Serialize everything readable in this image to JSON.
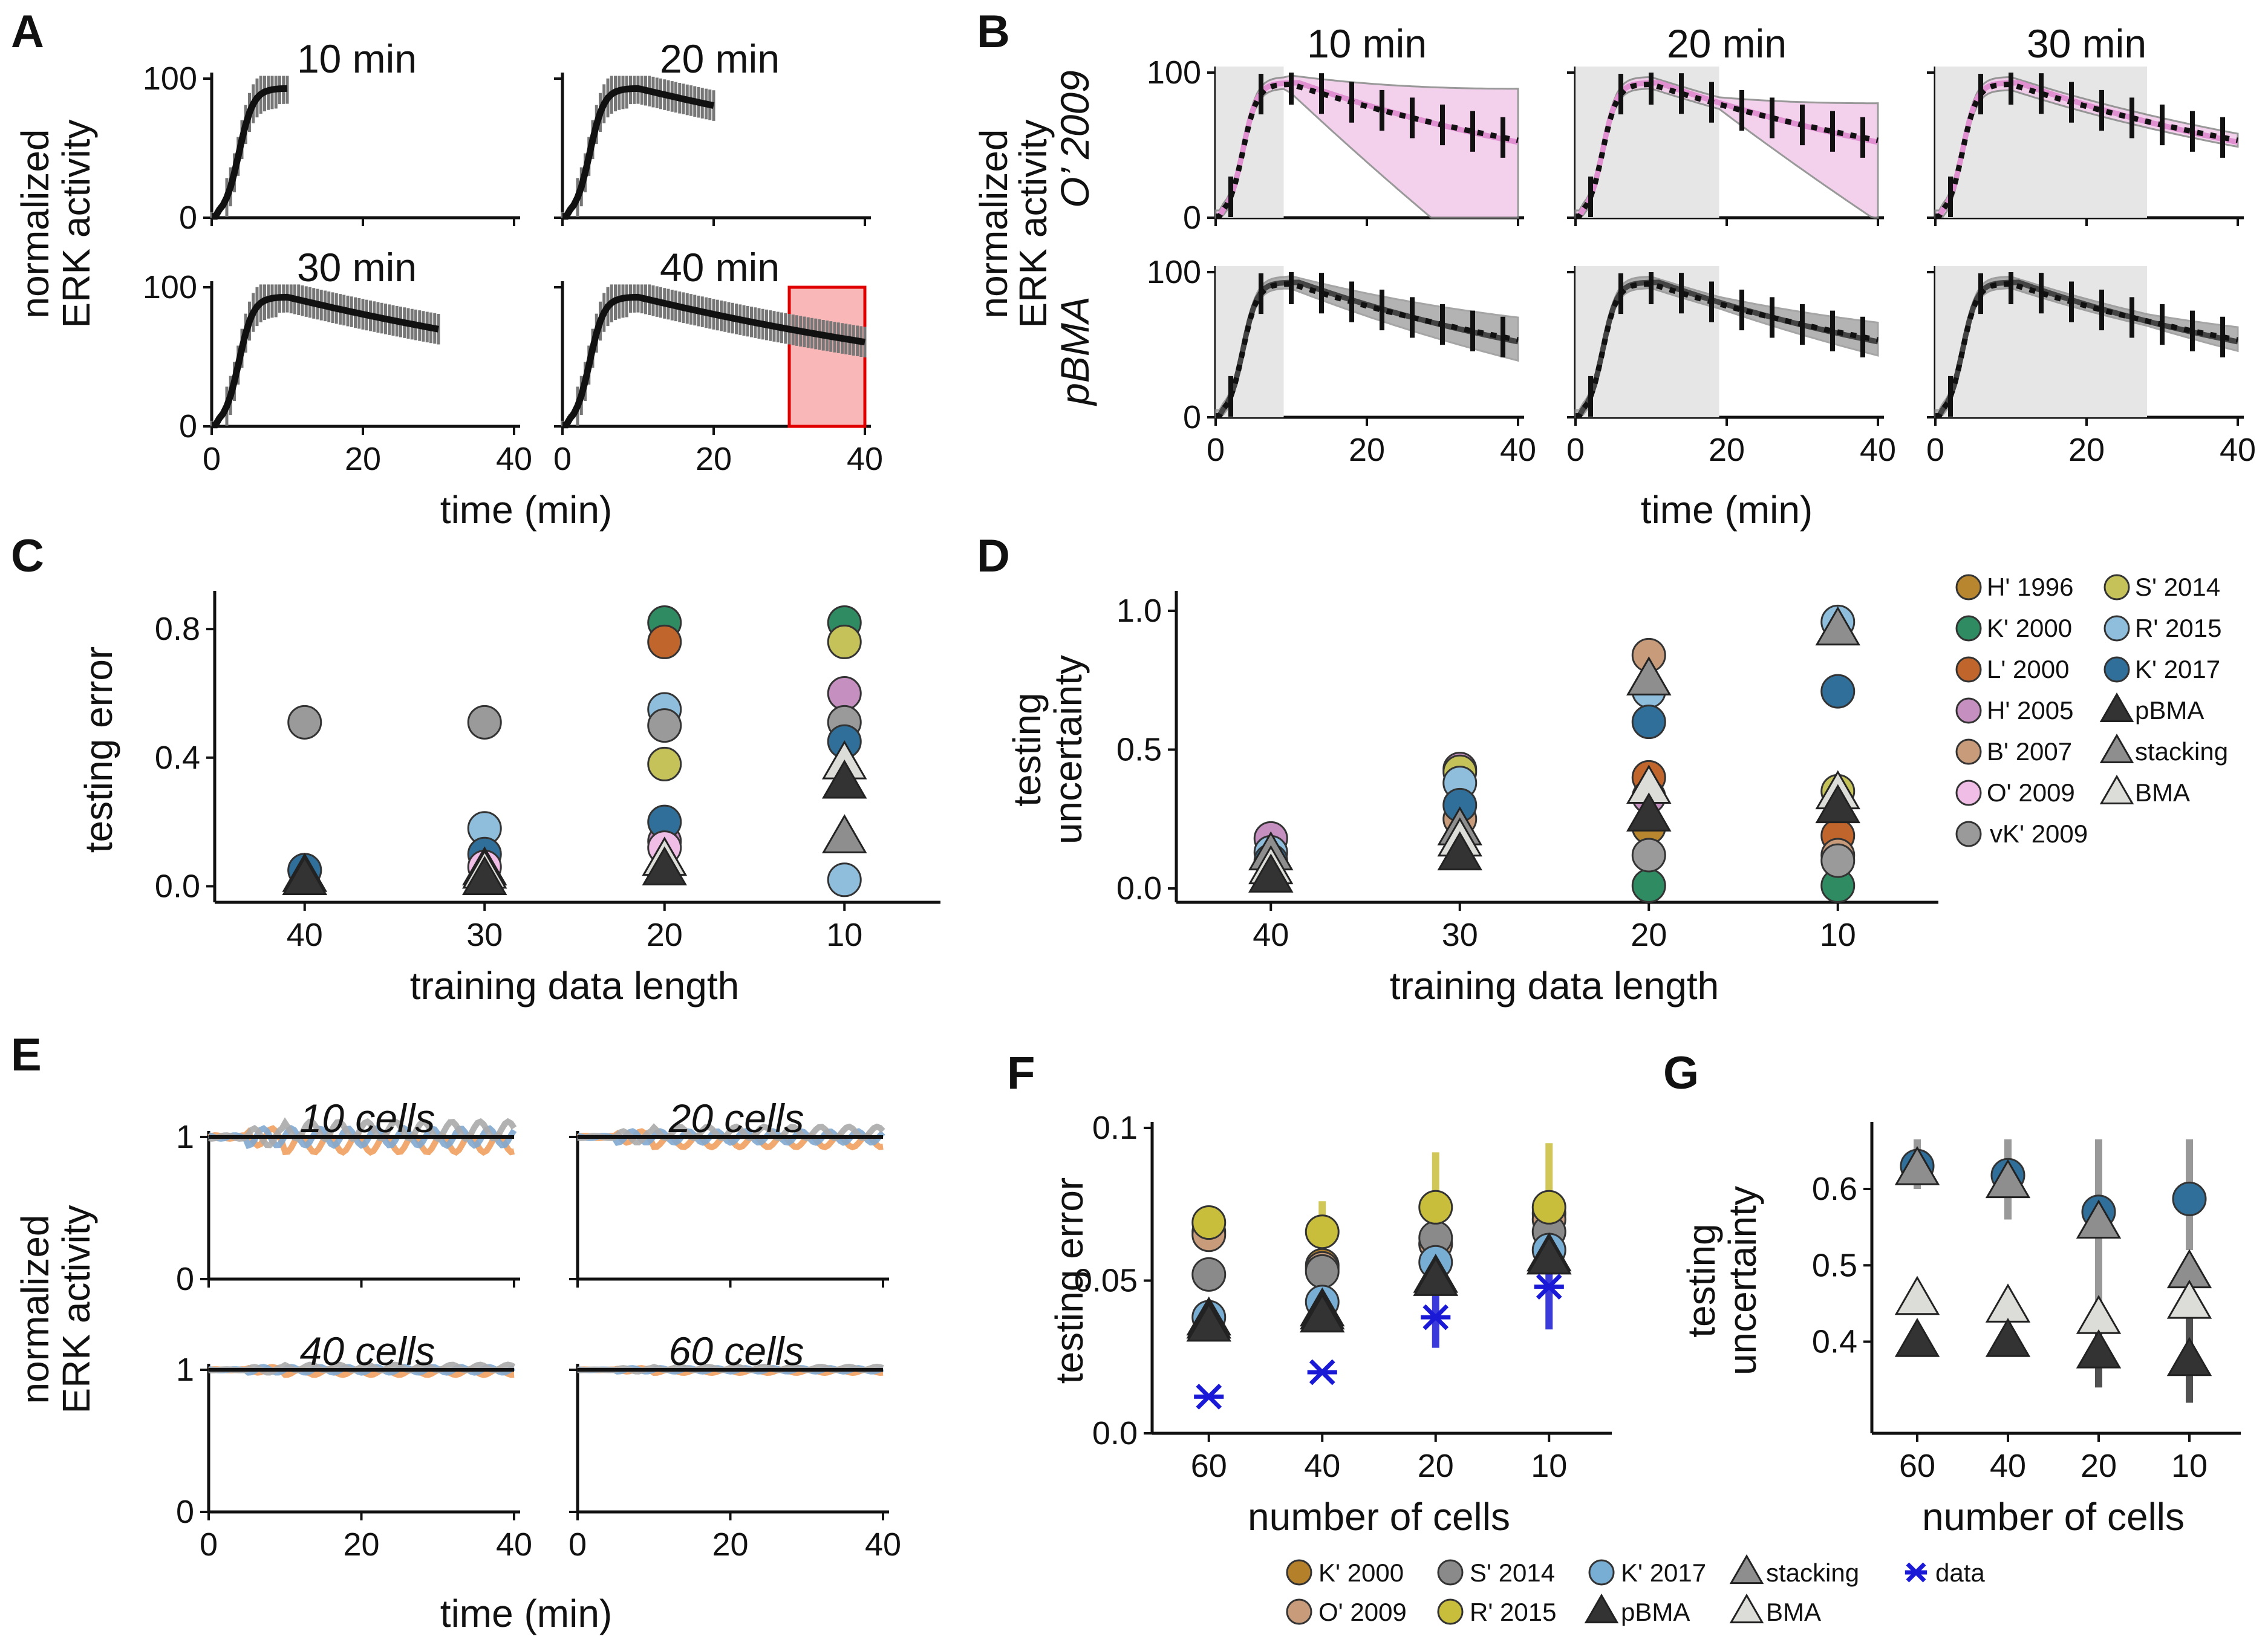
{
  "panel_labels": [
    "A",
    "B",
    "C",
    "D",
    "E",
    "F",
    "G"
  ],
  "colors": {
    "H' 1996": "#b8862e",
    "K' 2000": "#2e8b62",
    "L' 2000": "#c0662c",
    "H' 2005": "#c58fc0",
    "B' 2007": "#c89c7a",
    "O' 2009": "#f0bde6",
    "vK' 2009": "#9a9a9a",
    "S' 2014": "#c6c25a",
    "R' 2015": "#8fbedd",
    "K' 2017": "#2f6f9a",
    "pBMA": "#333333",
    "stacking": "#8e8e8e",
    "BMA": "#dcdcd8",
    "F_K2000": "#b5802a",
    "F_O2009": "#c89c7a",
    "F_S2014": "#8a8a8a",
    "F_R2015": "#c9be3c",
    "F_K2017": "#79aed4",
    "band_pink": "#f2c9ea",
    "band_gray": "#9a9a9a",
    "shade": "#e6e6e6",
    "red_box": "#f9b7b7",
    "data_blue": "#1a1ad6",
    "trace_orange": "#f0a060",
    "trace_blue": "#7fa8d0",
    "trace_gray": "#aaaaaa"
  },
  "chart_data": [
    {
      "id": "A",
      "type": "line",
      "xlabel": "time (min)",
      "ylabel": [
        "normalized",
        "ERK activity"
      ],
      "xlim": [
        0,
        40
      ],
      "ylim": [
        0,
        100
      ],
      "xticks": [
        0,
        20,
        40
      ],
      "yticks": [
        0,
        100
      ],
      "subplots": [
        {
          "title": "10 min",
          "t_end": 10
        },
        {
          "title": "20 min",
          "t_end": 20
        },
        {
          "title": "30 min",
          "t_end": 30
        },
        {
          "title": "40 min",
          "t_end": 40,
          "highlight": [
            30,
            40
          ]
        }
      ]
    },
    {
      "id": "B",
      "type": "line",
      "columns": [
        "10 min",
        "20 min",
        "30 min"
      ],
      "train_lengths": [
        9,
        19,
        28
      ],
      "rows": [
        "O’ 2009",
        "pBMA"
      ],
      "xlabel": "time (min)",
      "ylabel": [
        "normalized",
        "ERK activity"
      ],
      "xlim": [
        0,
        40
      ],
      "ylim": [
        0,
        100
      ],
      "xticks": [
        0,
        20,
        40
      ],
      "yticks": [
        0,
        100
      ]
    },
    {
      "id": "C",
      "type": "scatter",
      "xlabel": "training data length",
      "ylabel": "testing error",
      "categories": [
        "40",
        "30",
        "20",
        "10"
      ],
      "ylim": [
        -0.05,
        0.9
      ],
      "yticks": [
        0.0,
        0.4,
        0.8
      ],
      "yticklabels": [
        "0.0",
        "0.4",
        "0.8"
      ],
      "series": [
        {
          "name": "K' 2000",
          "values": [
            null,
            null,
            0.82,
            0.82
          ]
        },
        {
          "name": "L' 2000",
          "values": [
            null,
            null,
            0.76,
            null
          ]
        },
        {
          "name": "S' 2014",
          "values": [
            null,
            null,
            0.38,
            0.76
          ]
        },
        {
          "name": "H' 2005",
          "values": [
            null,
            null,
            0.14,
            0.6
          ]
        },
        {
          "name": "R' 2015",
          "values": [
            0.05,
            0.18,
            0.55,
            0.02
          ]
        },
        {
          "name": "vK' 2009",
          "values": [
            0.51,
            0.51,
            0.5,
            0.51
          ]
        },
        {
          "name": "K' 2017",
          "values": [
            0.05,
            0.1,
            0.2,
            0.45
          ]
        },
        {
          "name": "O' 2009",
          "values": [
            null,
            0.06,
            0.12,
            null
          ]
        },
        {
          "name": "stacking",
          "values": [
            0.02,
            0.05,
            0.08,
            0.15
          ]
        },
        {
          "name": "BMA",
          "values": [
            0.03,
            0.04,
            0.08,
            0.38
          ]
        },
        {
          "name": "pBMA",
          "values": [
            0.02,
            0.02,
            0.05,
            0.32
          ]
        }
      ]
    },
    {
      "id": "D",
      "type": "scatter",
      "xlabel": "training data length",
      "ylabel": [
        "testing",
        "uncertainty"
      ],
      "categories": [
        "40",
        "30",
        "20",
        "10"
      ],
      "ylim": [
        -0.05,
        1.05
      ],
      "yticks": [
        0.0,
        0.5,
        1.0
      ],
      "yticklabels": [
        "0.0",
        "0.5",
        "1.0"
      ],
      "series": [
        {
          "name": "H' 1996",
          "values": [
            null,
            null,
            0.22,
            null
          ]
        },
        {
          "name": "K' 2000",
          "values": [
            null,
            null,
            0.01,
            0.01
          ]
        },
        {
          "name": "L' 2000",
          "values": [
            null,
            null,
            0.4,
            0.19
          ]
        },
        {
          "name": "H' 2005",
          "values": [
            0.18,
            0.43,
            0.33,
            null
          ]
        },
        {
          "name": "B' 2007",
          "values": [
            null,
            0.25,
            0.84,
            0.12
          ]
        },
        {
          "name": "vK' 2009",
          "values": [
            null,
            null,
            0.12,
            0.1
          ]
        },
        {
          "name": "S' 2014",
          "values": [
            null,
            0.42,
            null,
            0.35
          ]
        },
        {
          "name": "R' 2015",
          "values": [
            0.13,
            0.38,
            0.71,
            0.96
          ]
        },
        {
          "name": "K' 2017",
          "values": [
            0.1,
            0.3,
            0.6,
            0.71
          ]
        },
        {
          "name": "stacking",
          "values": [
            0.12,
            0.21,
            0.75,
            0.93
          ]
        },
        {
          "name": "BMA",
          "values": [
            0.07,
            0.17,
            0.36,
            0.34
          ]
        },
        {
          "name": "pBMA",
          "values": [
            0.04,
            0.12,
            0.26,
            0.29
          ]
        }
      ],
      "legend": [
        "H' 1996",
        "K' 2000",
        "L' 2000",
        "H' 2005",
        "B' 2007",
        "O' 2009",
        "vK' 2009",
        "S' 2014",
        "R' 2015",
        "K' 2017",
        "pBMA",
        "stacking",
        "BMA"
      ]
    },
    {
      "id": "E",
      "type": "line",
      "xlabel": "time (min)",
      "ylabel": [
        "normalized",
        "ERK activity"
      ],
      "xlim": [
        0,
        40
      ],
      "ylim": [
        0,
        1
      ],
      "xticks": [
        0,
        20,
        40
      ],
      "yticks": [
        0,
        1
      ],
      "subplots": [
        {
          "title": "10 cells"
        },
        {
          "title": "20 cells"
        },
        {
          "title": "40 cells"
        },
        {
          "title": "60 cells"
        }
      ]
    },
    {
      "id": "F",
      "type": "scatter",
      "xlabel": "number of cells",
      "ylabel": "testing error",
      "categories": [
        "60",
        "40",
        "20",
        "10"
      ],
      "ylim": [
        0,
        0.1
      ],
      "yticks": [
        0.0,
        0.05,
        0.1
      ],
      "yticklabels": [
        "0.0",
        "0.05",
        "0.1"
      ],
      "series": [
        {
          "name": "K' 2000",
          "values": [
            0.066,
            0.055,
            0.062,
            0.072
          ]
        },
        {
          "name": "O' 2009",
          "values": [
            0.065,
            0.054,
            0.062,
            0.07
          ]
        },
        {
          "name": "S' 2014",
          "values": [
            0.052,
            0.053,
            0.064,
            0.066
          ]
        },
        {
          "name": "R' 2015",
          "values": [
            0.069,
            0.066,
            0.074,
            0.074
          ]
        },
        {
          "name": "K' 2017",
          "values": [
            0.038,
            0.043,
            0.056,
            0.06
          ]
        },
        {
          "name": "stacking",
          "values": [
            0.037,
            0.04,
            0.051,
            0.058
          ]
        },
        {
          "name": "BMA",
          "values": [
            0.036,
            0.039,
            0.05,
            0.057
          ]
        },
        {
          "name": "pBMA",
          "values": [
            0.035,
            0.038,
            0.05,
            0.057
          ]
        },
        {
          "name": "data",
          "values": [
            0.012,
            0.02,
            0.038,
            0.048
          ]
        }
      ]
    },
    {
      "id": "G",
      "type": "scatter",
      "xlabel": "number of cells",
      "ylabel": [
        "testing",
        "uncertainty"
      ],
      "categories": [
        "60",
        "40",
        "20",
        "10"
      ],
      "ylim": [
        0.28,
        0.68
      ],
      "yticks": [
        0.4,
        0.5,
        0.6
      ],
      "yticklabels": [
        "0.4",
        "0.5",
        "0.6"
      ],
      "series": [
        {
          "name": "K' 2017",
          "values": [
            0.63,
            0.618,
            0.57,
            0.587
          ]
        },
        {
          "name": "stacking",
          "values": [
            0.625,
            0.608,
            0.555,
            0.49
          ]
        },
        {
          "name": "BMA",
          "values": [
            0.455,
            0.445,
            0.43,
            0.45
          ]
        },
        {
          "name": "pBMA",
          "values": [
            0.4,
            0.4,
            0.385,
            0.375
          ]
        }
      ]
    }
  ],
  "legend_F": [
    "K' 2000",
    "S' 2014",
    "K' 2017",
    "stacking",
    "data",
    "O' 2009",
    "R' 2015",
    "pBMA",
    "BMA"
  ]
}
